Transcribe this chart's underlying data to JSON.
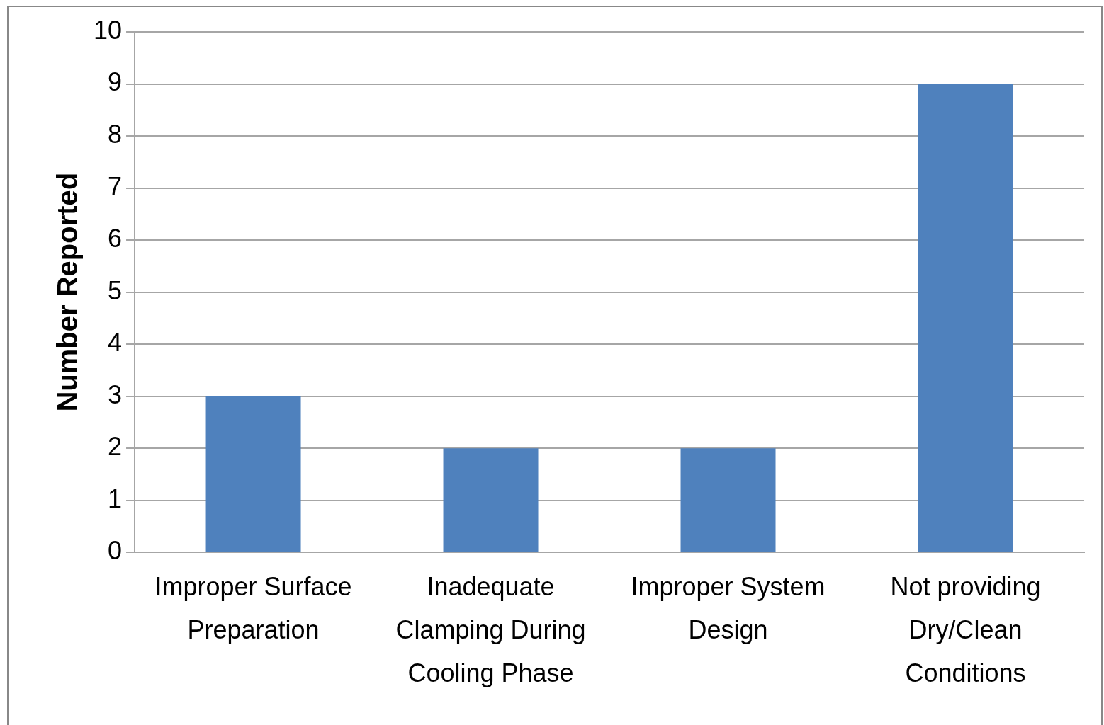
{
  "chart_data": {
    "type": "bar",
    "ylabel": "Number Reported",
    "categories": [
      "Improper Surface Preparation",
      "Inadequate Clamping During Cooling Phase",
      "Improper System Design",
      "Not providing Dry/Clean Conditions"
    ],
    "values": [
      3,
      2,
      2,
      9
    ],
    "color": "#4f81bd",
    "ylim": [
      0,
      10
    ],
    "yticks": [
      0,
      1,
      2,
      3,
      4,
      5,
      6,
      7,
      8,
      9,
      10
    ],
    "grid": "y",
    "legend": false
  }
}
